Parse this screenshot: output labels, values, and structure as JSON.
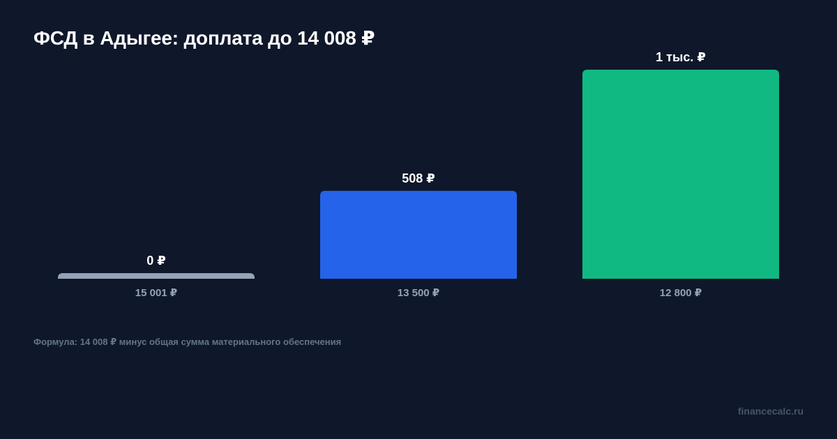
{
  "title": "ФСД в Адыгее: доплата до 14 008 ₽",
  "footnote": "Формула: 14 008 ₽ минус общая сумма материального обеспечения",
  "source": "financecalc.ru",
  "chart_data": {
    "type": "bar",
    "title": "ФСД в Адыгее: доплата до 14 008 ₽",
    "xlabel": "",
    "ylabel": "",
    "categories": [
      "15 001 ₽",
      "13 500 ₽",
      "12 800 ₽"
    ],
    "values": [
      0,
      508,
      1208
    ],
    "value_labels": [
      "0 ₽",
      "508 ₽",
      "1 тыс. ₽"
    ],
    "colors": [
      "#94a3b8",
      "#2563eb",
      "#10b981"
    ],
    "ylim": [
      0,
      1208
    ],
    "grid": false,
    "legend": "none"
  }
}
